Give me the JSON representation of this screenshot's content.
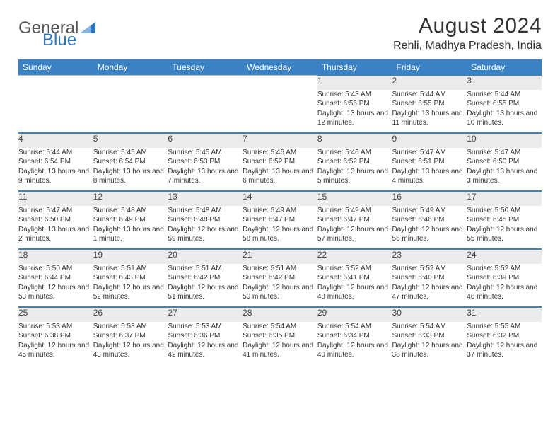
{
  "brand": {
    "general": "General",
    "blue": "Blue"
  },
  "title": "August 2024",
  "location": "Rehli, Madhya Pradesh, India",
  "accent_color": "#3b82c4",
  "header_bg": "#ebebeb",
  "text_color": "#333333",
  "weekdays": [
    "Sunday",
    "Monday",
    "Tuesday",
    "Wednesday",
    "Thursday",
    "Friday",
    "Saturday"
  ],
  "weeks": [
    [
      null,
      null,
      null,
      null,
      {
        "n": "1",
        "sr": "5:43 AM",
        "ss": "6:56 PM",
        "dl": "13 hours and 12 minutes."
      },
      {
        "n": "2",
        "sr": "5:44 AM",
        "ss": "6:55 PM",
        "dl": "13 hours and 11 minutes."
      },
      {
        "n": "3",
        "sr": "5:44 AM",
        "ss": "6:55 PM",
        "dl": "13 hours and 10 minutes."
      }
    ],
    [
      {
        "n": "4",
        "sr": "5:44 AM",
        "ss": "6:54 PM",
        "dl": "13 hours and 9 minutes."
      },
      {
        "n": "5",
        "sr": "5:45 AM",
        "ss": "6:54 PM",
        "dl": "13 hours and 8 minutes."
      },
      {
        "n": "6",
        "sr": "5:45 AM",
        "ss": "6:53 PM",
        "dl": "13 hours and 7 minutes."
      },
      {
        "n": "7",
        "sr": "5:46 AM",
        "ss": "6:52 PM",
        "dl": "13 hours and 6 minutes."
      },
      {
        "n": "8",
        "sr": "5:46 AM",
        "ss": "6:52 PM",
        "dl": "13 hours and 5 minutes."
      },
      {
        "n": "9",
        "sr": "5:47 AM",
        "ss": "6:51 PM",
        "dl": "13 hours and 4 minutes."
      },
      {
        "n": "10",
        "sr": "5:47 AM",
        "ss": "6:50 PM",
        "dl": "13 hours and 3 minutes."
      }
    ],
    [
      {
        "n": "11",
        "sr": "5:47 AM",
        "ss": "6:50 PM",
        "dl": "13 hours and 2 minutes."
      },
      {
        "n": "12",
        "sr": "5:48 AM",
        "ss": "6:49 PM",
        "dl": "13 hours and 1 minute."
      },
      {
        "n": "13",
        "sr": "5:48 AM",
        "ss": "6:48 PM",
        "dl": "12 hours and 59 minutes."
      },
      {
        "n": "14",
        "sr": "5:49 AM",
        "ss": "6:47 PM",
        "dl": "12 hours and 58 minutes."
      },
      {
        "n": "15",
        "sr": "5:49 AM",
        "ss": "6:47 PM",
        "dl": "12 hours and 57 minutes."
      },
      {
        "n": "16",
        "sr": "5:49 AM",
        "ss": "6:46 PM",
        "dl": "12 hours and 56 minutes."
      },
      {
        "n": "17",
        "sr": "5:50 AM",
        "ss": "6:45 PM",
        "dl": "12 hours and 55 minutes."
      }
    ],
    [
      {
        "n": "18",
        "sr": "5:50 AM",
        "ss": "6:44 PM",
        "dl": "12 hours and 53 minutes."
      },
      {
        "n": "19",
        "sr": "5:51 AM",
        "ss": "6:43 PM",
        "dl": "12 hours and 52 minutes."
      },
      {
        "n": "20",
        "sr": "5:51 AM",
        "ss": "6:42 PM",
        "dl": "12 hours and 51 minutes."
      },
      {
        "n": "21",
        "sr": "5:51 AM",
        "ss": "6:42 PM",
        "dl": "12 hours and 50 minutes."
      },
      {
        "n": "22",
        "sr": "5:52 AM",
        "ss": "6:41 PM",
        "dl": "12 hours and 48 minutes."
      },
      {
        "n": "23",
        "sr": "5:52 AM",
        "ss": "6:40 PM",
        "dl": "12 hours and 47 minutes."
      },
      {
        "n": "24",
        "sr": "5:52 AM",
        "ss": "6:39 PM",
        "dl": "12 hours and 46 minutes."
      }
    ],
    [
      {
        "n": "25",
        "sr": "5:53 AM",
        "ss": "6:38 PM",
        "dl": "12 hours and 45 minutes."
      },
      {
        "n": "26",
        "sr": "5:53 AM",
        "ss": "6:37 PM",
        "dl": "12 hours and 43 minutes."
      },
      {
        "n": "27",
        "sr": "5:53 AM",
        "ss": "6:36 PM",
        "dl": "12 hours and 42 minutes."
      },
      {
        "n": "28",
        "sr": "5:54 AM",
        "ss": "6:35 PM",
        "dl": "12 hours and 41 minutes."
      },
      {
        "n": "29",
        "sr": "5:54 AM",
        "ss": "6:34 PM",
        "dl": "12 hours and 40 minutes."
      },
      {
        "n": "30",
        "sr": "5:54 AM",
        "ss": "6:33 PM",
        "dl": "12 hours and 38 minutes."
      },
      {
        "n": "31",
        "sr": "5:55 AM",
        "ss": "6:32 PM",
        "dl": "12 hours and 37 minutes."
      }
    ]
  ],
  "labels": {
    "sunrise": "Sunrise:",
    "sunset": "Sunset:",
    "daylight": "Daylight:"
  }
}
